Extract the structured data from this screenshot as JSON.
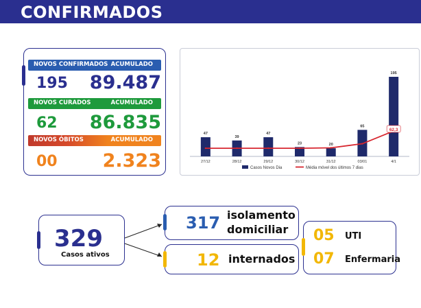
{
  "header": {
    "title": "CONFIRMADOS"
  },
  "stats": {
    "confirmados": {
      "label": "NOVOS CONFIRMADOS",
      "acc_label": "ACUMULADO",
      "new": "195",
      "total": "89.487"
    },
    "curados": {
      "label": "NOVOS CURADOS",
      "acc_label": "ACUMULADO",
      "new": "62",
      "total": "86.835"
    },
    "obitos": {
      "label": "NOVOS ÓBITOS",
      "acc_label": "ACUMULADO",
      "new": "00",
      "total": "2.323"
    }
  },
  "colors": {
    "navy": "#2a2f8f",
    "green": "#1e9a3c",
    "orange": "#f0831e",
    "red": "#c0392b",
    "yellow": "#f2b705",
    "bar": "#1f2a6b"
  },
  "chart_data": {
    "type": "bar",
    "categories": [
      "27/12",
      "28/12",
      "29/12",
      "30/12",
      "31/12",
      "03/01",
      "4/1"
    ],
    "series": [
      {
        "name": "Casos Novos Dia",
        "values": [
          47,
          39,
          47,
          23,
          20,
          65,
          195
        ]
      },
      {
        "name": "Média móvel dos últimos 7 dias",
        "values": [
          20,
          20,
          20,
          20,
          21,
          31,
          62.3
        ]
      }
    ],
    "value_labels": [
      "47",
      "39",
      "47",
      "23",
      "20",
      "65",
      "195"
    ],
    "last_avg_label": "62,3",
    "legend": [
      "Casos Novos Dia",
      "Média móvel dos últimos 7 dias"
    ],
    "ylim": [
      0,
      200
    ]
  },
  "diagram": {
    "ativos": {
      "value": "329",
      "label": "Casos ativos"
    },
    "isolamento": {
      "value": "317",
      "label_line1": "isolamento",
      "label_line2": "domiciliar"
    },
    "internados": {
      "value": "12",
      "label": "internados"
    },
    "uti": {
      "value": "05",
      "label": "UTI"
    },
    "enfermaria": {
      "value": "07",
      "label": "Enfermaria"
    }
  }
}
